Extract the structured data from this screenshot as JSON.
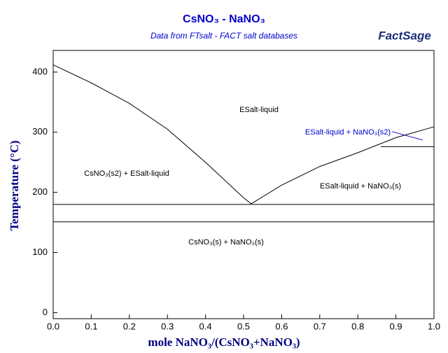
{
  "chart_data": {
    "type": "line",
    "title": "CsNO₃ - NaNO₃",
    "subtitle": "Data from FTsalt - FACT salt databases",
    "logo": "FactSage",
    "x_label": "mole NaNO₃/(CsNO₃+NaNO₃)",
    "y_label": "Temperature (°C)",
    "xlim": [
      0,
      1
    ],
    "ylim": [
      -10,
      436
    ],
    "xticks": [
      {
        "value": 0,
        "label": "0.0"
      },
      0.1,
      0.2,
      0.3,
      0.4,
      0.5,
      0.6,
      0.7,
      0.8,
      0.9,
      {
        "value": 1,
        "label": "1.0"
      }
    ],
    "yticks": [
      0,
      100,
      200,
      300,
      400
    ],
    "series": [
      {
        "color": "#000000",
        "x": [
          0,
          0.1,
          0.2,
          0.3,
          0.4,
          0.5,
          0.52
        ],
        "values": [
          412,
          382,
          348,
          305,
          250,
          191,
          181
        ]
      },
      {
        "color": "#000000",
        "x": [
          0.52,
          0.6,
          0.7,
          0.8,
          0.9,
          1
        ],
        "values": [
          181,
          212,
          243,
          266,
          291,
          309
        ]
      },
      {
        "color": "#000000",
        "x": [
          0,
          1
        ],
        "values": [
          180,
          180
        ]
      },
      {
        "color": "#000000",
        "x": [
          0,
          1
        ],
        "values": [
          151,
          151
        ]
      },
      {
        "color": "#000000",
        "x": [
          0.86,
          1
        ],
        "values": [
          276,
          276
        ]
      },
      {
        "color": "#0000cc",
        "x": [
          0.89,
          0.97
        ],
        "values": [
          301,
          287
        ]
      }
    ],
    "annotations": [
      "ESalt-liquid",
      "CsNO₃(s2) + ESalt-liquid",
      "ESalt-liquid + NaNO₃(s2)",
      "ESalt-liquid + NaNO₃(s)",
      "CsNO₃(s) + NaNO₃(s)"
    ]
  }
}
